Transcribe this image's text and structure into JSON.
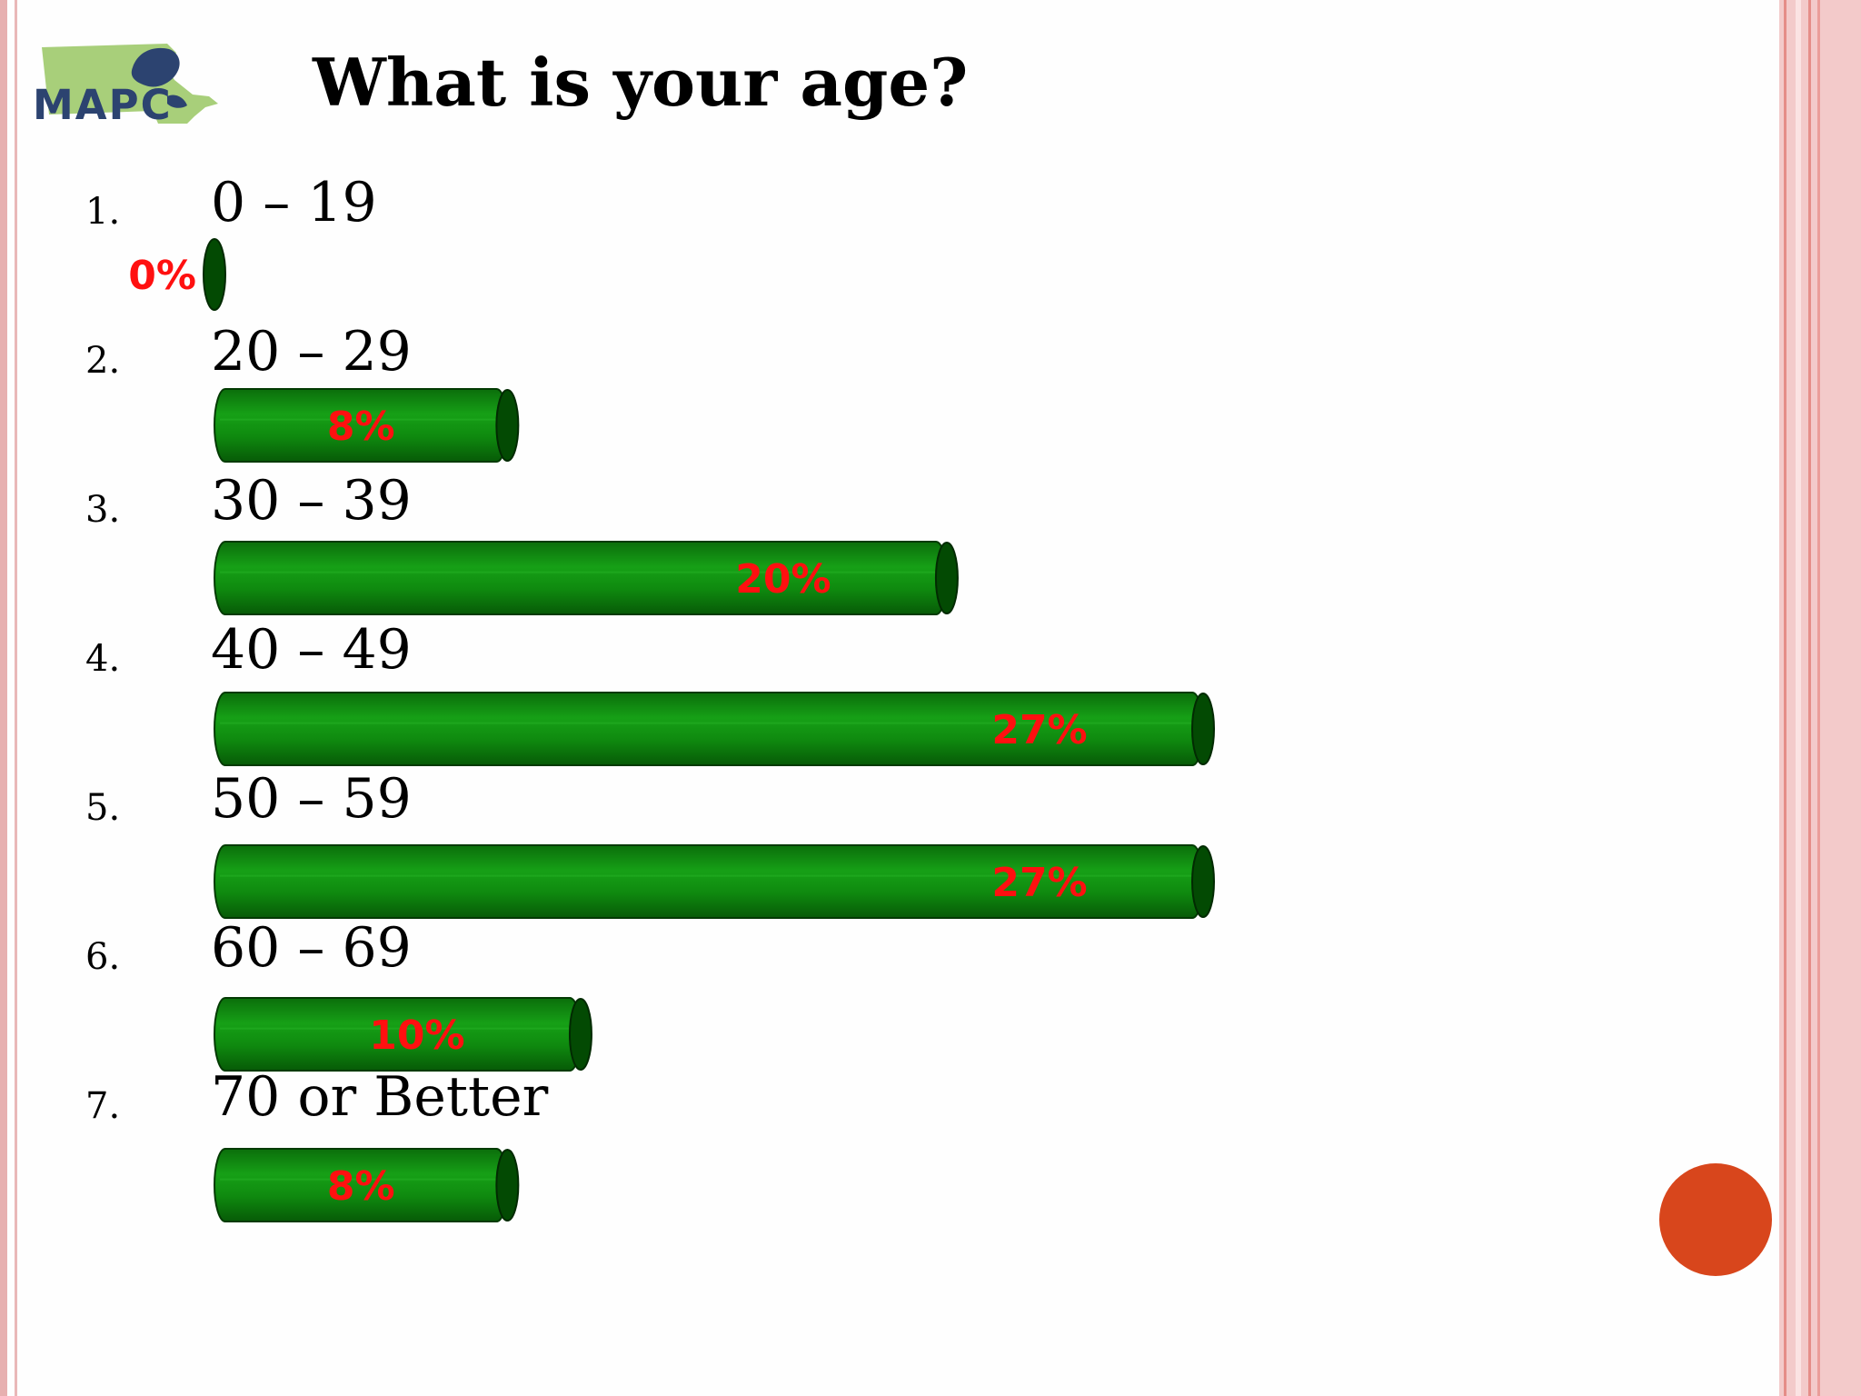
{
  "logo": {
    "text": "MAPC"
  },
  "slide": {
    "title": "What is your age?"
  },
  "colors": {
    "bar_fill": "#0f8a0f",
    "bar_cap": "#034a03",
    "percent_label": "#ff1010",
    "accent_dot": "#d8461c"
  },
  "chart_data": {
    "type": "bar",
    "orientation": "horizontal",
    "title": "What is your age?",
    "categories": [
      "0 – 19",
      "20 – 29",
      "30 – 39",
      "40 – 49",
      "50 – 59",
      "60 – 69",
      "70 or Better"
    ],
    "numbers": [
      "1.",
      "2.",
      "3.",
      "4.",
      "5.",
      "6.",
      "7."
    ],
    "values": [
      0,
      8,
      20,
      27,
      27,
      10,
      8
    ],
    "value_labels": [
      "0%",
      "8%",
      "20%",
      "27%",
      "27%",
      "10%",
      "8%"
    ],
    "unit": "%",
    "xlim": [
      0,
      27
    ],
    "grid": false,
    "legend": "none"
  }
}
